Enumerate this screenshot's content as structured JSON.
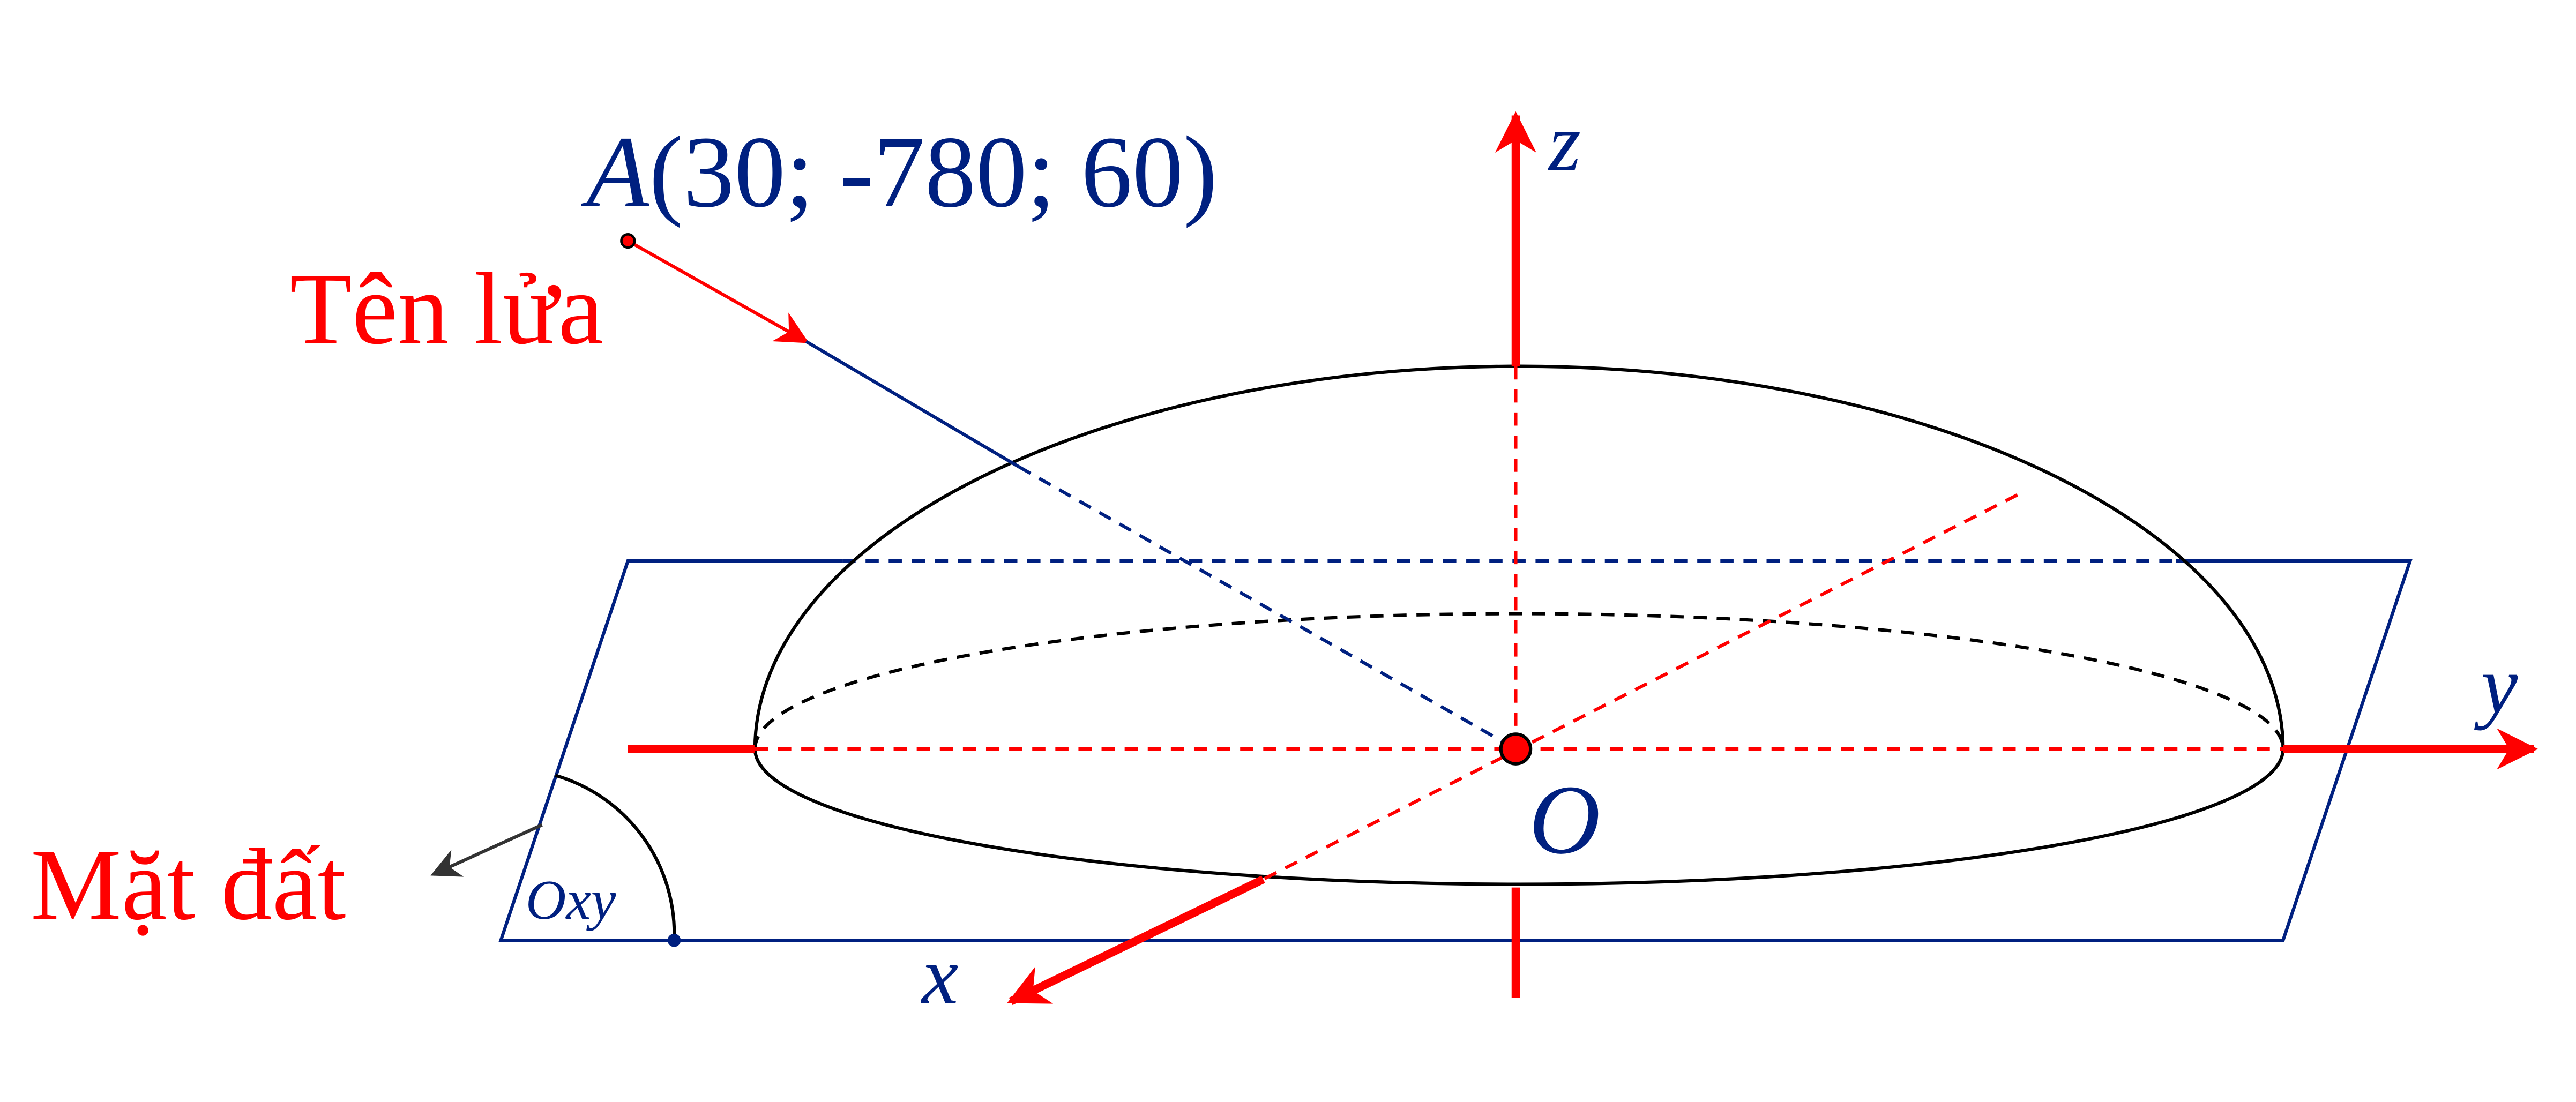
{
  "labels": {
    "point_name": "A",
    "point_coords": "(30; -780; 60)",
    "rocket": "Tên lửa",
    "ground": "Mặt đất",
    "plane": "Oxy",
    "axis_x": "x",
    "axis_y": "y",
    "axis_z": "z",
    "origin": "O"
  }
}
